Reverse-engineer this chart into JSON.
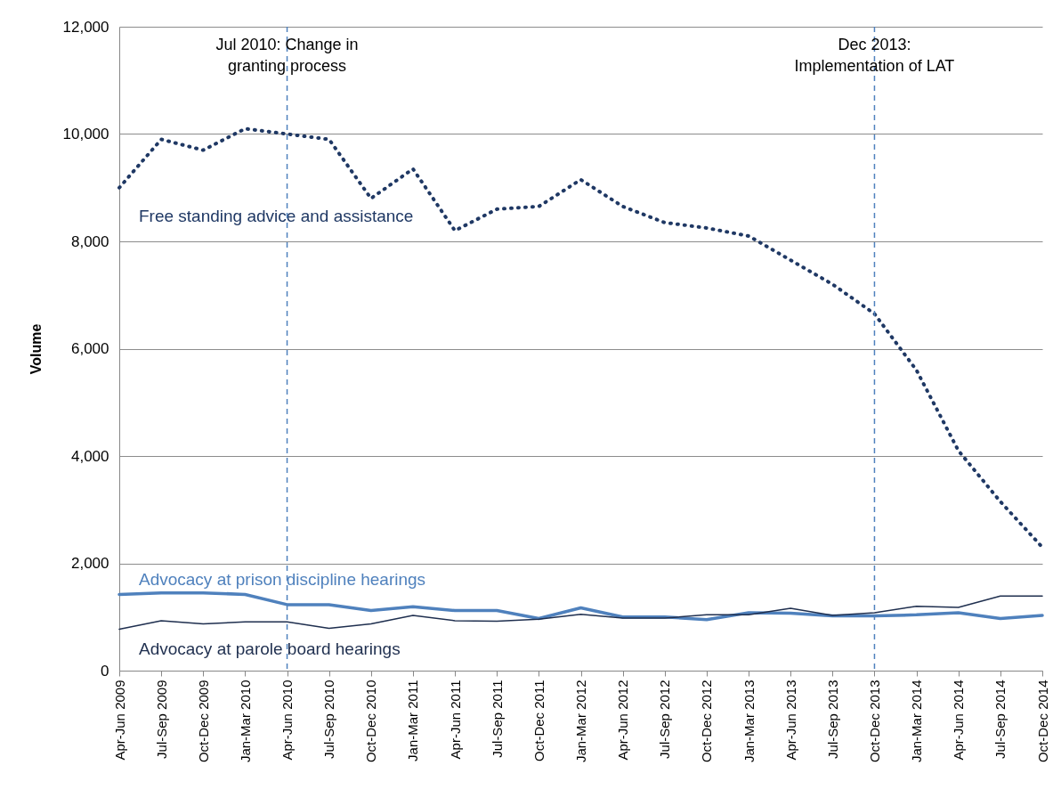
{
  "chart_data": {
    "type": "line",
    "ylabel": "Volume",
    "categories": [
      "Apr-Jun 2009",
      "Jul-Sep 2009",
      "Oct-Dec 2009",
      "Jan-Mar 2010",
      "Apr-Jun 2010",
      "Jul-Sep 2010",
      "Oct-Dec 2010",
      "Jan-Mar 2011",
      "Apr-Jun 2011",
      "Jul-Sep 2011",
      "Oct-Dec 2011",
      "Jan-Mar 2012",
      "Apr-Jun 2012",
      "Jul-Sep 2012",
      "Oct-Dec 2012",
      "Jan-Mar 2013",
      "Apr-Jun 2013",
      "Jul-Sep 2013",
      "Oct-Dec 2013",
      "Jan-Mar 2014",
      "Apr-Jun 2014",
      "Jul-Sep 2014",
      "Oct-Dec 2014"
    ],
    "series": [
      {
        "name": "Free standing advice and assistance",
        "color": "#1f3864",
        "line_style": "dotted",
        "values": [
          9000,
          9900,
          9700,
          10100,
          10000,
          9900,
          8800,
          9350,
          8200,
          8600,
          8650,
          9150,
          8650,
          8350,
          8250,
          8100,
          7650,
          7200,
          6650,
          5600,
          4100,
          3150,
          2300
        ]
      },
      {
        "name": "Advocacy at prison discipline hearings",
        "color": "#4f81bd",
        "line_style": "solid",
        "values": [
          1420,
          1450,
          1450,
          1420,
          1230,
          1230,
          1120,
          1190,
          1120,
          1120,
          970,
          1170,
          1000,
          1000,
          950,
          1080,
          1070,
          1020,
          1020,
          1040,
          1080,
          970,
          1030
        ]
      },
      {
        "name": "Advocacy at parole board hearings",
        "color": "#1f2f4f",
        "line_style": "solid",
        "values": [
          770,
          930,
          870,
          910,
          910,
          790,
          870,
          1030,
          930,
          920,
          960,
          1050,
          980,
          980,
          1040,
          1040,
          1160,
          1030,
          1080,
          1200,
          1180,
          1390,
          1390
        ]
      }
    ],
    "ylim": [
      0,
      12000
    ],
    "yticks": [
      0,
      {
        "value": 2000,
        "label": "2,000"
      },
      {
        "value": 4000,
        "label": "4,000"
      },
      {
        "value": 6000,
        "label": "6,000"
      },
      {
        "value": 8000,
        "label": "8,000"
      },
      {
        "value": 10000,
        "label": "10,000"
      },
      {
        "value": 12000,
        "label": "12,000"
      }
    ],
    "grid": "y",
    "marker": "none",
    "ref_lines": [
      {
        "axis": "x",
        "value": "Apr-Jun 2010",
        "label": "Jul 2010: Change in granting process",
        "color": "#4f81bd",
        "line_style": "dashed"
      },
      {
        "axis": "x",
        "value": "Oct-Dec 2013",
        "label": "Dec 2013: Implementation of LAT",
        "color": "#4f81bd",
        "line_style": "dashed"
      }
    ]
  }
}
